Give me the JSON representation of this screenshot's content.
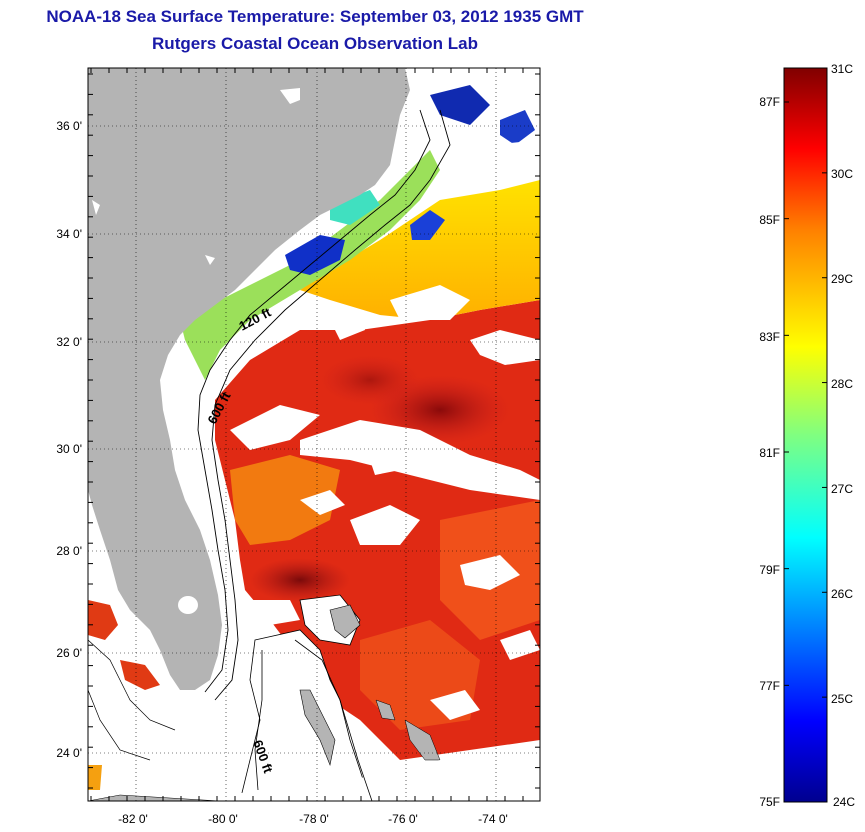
{
  "header": {
    "title": "NOAA-18 Sea Surface Temperature:  September 03, 2012 1935 GMT",
    "subtitle": "Rutgers Coastal Ocean Observation Lab"
  },
  "map": {
    "lat_ticks": [
      "36 0'",
      "34 0'",
      "32 0'",
      "30 0'",
      "28 0'",
      "26 0'",
      "24 0'"
    ],
    "lon_ticks": [
      "-82 0'",
      "-80 0'",
      "-78 0'",
      "-76 0'",
      "-74 0'"
    ],
    "contour_labels": [
      "120 ft",
      "600 ft",
      "600 ft"
    ],
    "land_color": "#b4b4b4",
    "cloud_color": "#ffffff"
  },
  "colorbar": {
    "celsius_labels": [
      "31C",
      "30C",
      "29C",
      "28C",
      "27C",
      "26C",
      "25C",
      "24C"
    ],
    "fahrenheit_labels": [
      "87F",
      "85F",
      "83F",
      "81F",
      "79F",
      "77F",
      "75F"
    ],
    "min_c": 24,
    "max_c": 31,
    "colormap": [
      "#00008f",
      "#0000ff",
      "#0080ff",
      "#00ffff",
      "#80ff80",
      "#ffff00",
      "#ff8000",
      "#ff0000",
      "#800000"
    ]
  }
}
